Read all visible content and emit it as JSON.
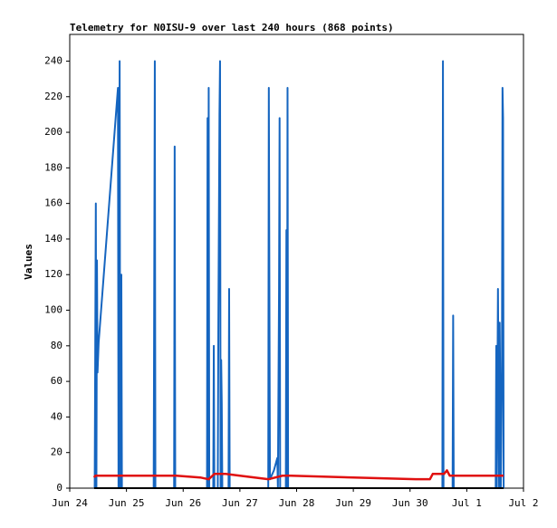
{
  "chart_data": {
    "type": "line",
    "title": "Telemetry for N0ISU-9 over last 240 hours (868 points)",
    "y_label": "Values",
    "xlim": [
      0,
      8
    ],
    "xticks": [
      {
        "value": 0,
        "label": "Jun 24"
      },
      {
        "value": 1,
        "label": "Jun 25"
      },
      {
        "value": 2,
        "label": "Jun 26"
      },
      {
        "value": 3,
        "label": "Jun 27"
      },
      {
        "value": 4,
        "label": "Jun 28"
      },
      {
        "value": 5,
        "label": "Jun 29"
      },
      {
        "value": 6,
        "label": "Jun 30"
      },
      {
        "value": 7,
        "label": "Jul 1"
      },
      {
        "value": 8,
        "label": "Jul 2"
      }
    ],
    "ylim": [
      0,
      255
    ],
    "yticks": [
      0,
      20,
      40,
      60,
      80,
      100,
      120,
      140,
      160,
      180,
      200,
      220,
      240
    ],
    "series": [
      {
        "color": "#1565c0",
        "x": [
          0.44,
          0.46,
          0.47,
          0.48,
          0.49,
          0.51,
          0.85,
          0.86,
          0.88,
          0.89,
          0.91,
          0.92,
          1.48,
          1.49,
          1.5,
          1.51,
          1.84,
          1.85,
          1.86,
          2.42,
          2.43,
          2.44,
          2.45,
          2.46,
          2.53,
          2.54,
          2.55,
          2.61,
          2.62,
          2.63,
          2.64,
          2.65,
          2.66,
          2.67,
          2.68,
          2.69,
          2.8,
          2.81,
          2.82,
          3.5,
          3.51,
          3.52,
          3.53,
          3.6,
          3.66,
          3.67,
          3.69,
          3.7,
          3.71,
          3.81,
          3.82,
          3.83,
          3.84,
          3.85,
          6.57,
          6.58,
          6.59,
          6.75,
          6.76,
          6.77,
          7.51,
          7.52,
          7.53,
          7.55,
          7.57,
          7.58,
          7.59,
          7.6,
          7.62,
          7.63,
          7.64,
          7.65
        ],
        "values": [
          0,
          160,
          0,
          128,
          65,
          82,
          225,
          0,
          240,
          0,
          120,
          0,
          0,
          120,
          240,
          0,
          0,
          192,
          0,
          0,
          208,
          0,
          225,
          0,
          0,
          80,
          0,
          0,
          90,
          150,
          210,
          240,
          0,
          72,
          48,
          0,
          0,
          112,
          0,
          0,
          225,
          112,
          5,
          10,
          17,
          0,
          112,
          208,
          0,
          0,
          145,
          0,
          225,
          0,
          0,
          240,
          0,
          0,
          97,
          0,
          0,
          80,
          0,
          112,
          0,
          93,
          56,
          0,
          64,
          225,
          208,
          0
        ]
      },
      {
        "color": "#000000",
        "x": [
          0.43,
          7.65
        ],
        "values": [
          0,
          0
        ]
      },
      {
        "color": "#e01010",
        "x": [
          0.43,
          0.45,
          1.88,
          2.3,
          2.45,
          2.55,
          2.75,
          3.0,
          3.5,
          3.75,
          3.9,
          5.0,
          6.1,
          6.35,
          6.4,
          6.6,
          6.65,
          6.7,
          7.65
        ],
        "values": [
          6,
          7,
          7,
          6,
          5,
          8,
          8,
          7,
          5,
          7,
          7,
          6,
          5,
          5,
          8,
          8,
          10,
          7,
          7
        ]
      }
    ]
  }
}
